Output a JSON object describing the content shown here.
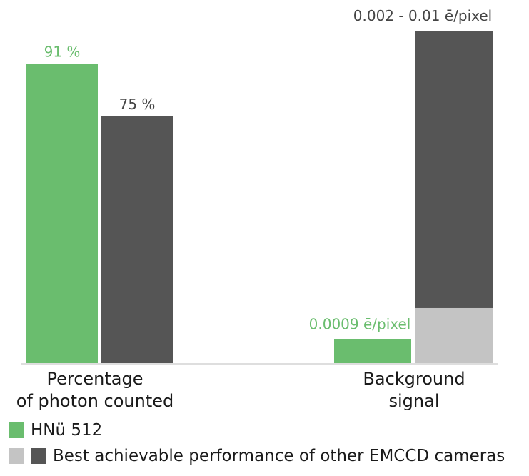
{
  "chart_data": {
    "type": "bar",
    "groups": [
      {
        "label_lines": [
          "Percentage",
          "of photon counted"
        ],
        "bars": [
          {
            "series": "HNü 512",
            "value": 91,
            "label": "91 %"
          },
          {
            "series": "Best achievable performance of other EMCCD cameras",
            "value": 75,
            "label": "75 %"
          }
        ]
      },
      {
        "label_lines": [
          "Background",
          "signal"
        ],
        "bars": [
          {
            "series": "HNü 512",
            "value": 0.0009,
            "label": "0.0009 ē/pixel"
          },
          {
            "series": "Best achievable performance of other EMCCD cameras",
            "value_range": [
              0.002,
              0.01
            ],
            "label": "0.002 - 0.01 ē/pixel"
          }
        ]
      }
    ],
    "legend": {
      "placement": "bottom-left",
      "entries": [
        {
          "name": "HNü 512",
          "colors": [
            "#6abd6e"
          ]
        },
        {
          "name": "Best achievable performance of other EMCCD cameras",
          "colors": [
            "#c4c4c4",
            "#555555"
          ]
        }
      ]
    },
    "colors": {
      "hnu": "#6abd6e",
      "other": "#555555",
      "other_light": "#c4c4c4",
      "hnu_label": "#6abd6e",
      "other_label": "#444444",
      "axis": "#bdbdbd",
      "text": "#1a1a1a"
    }
  }
}
